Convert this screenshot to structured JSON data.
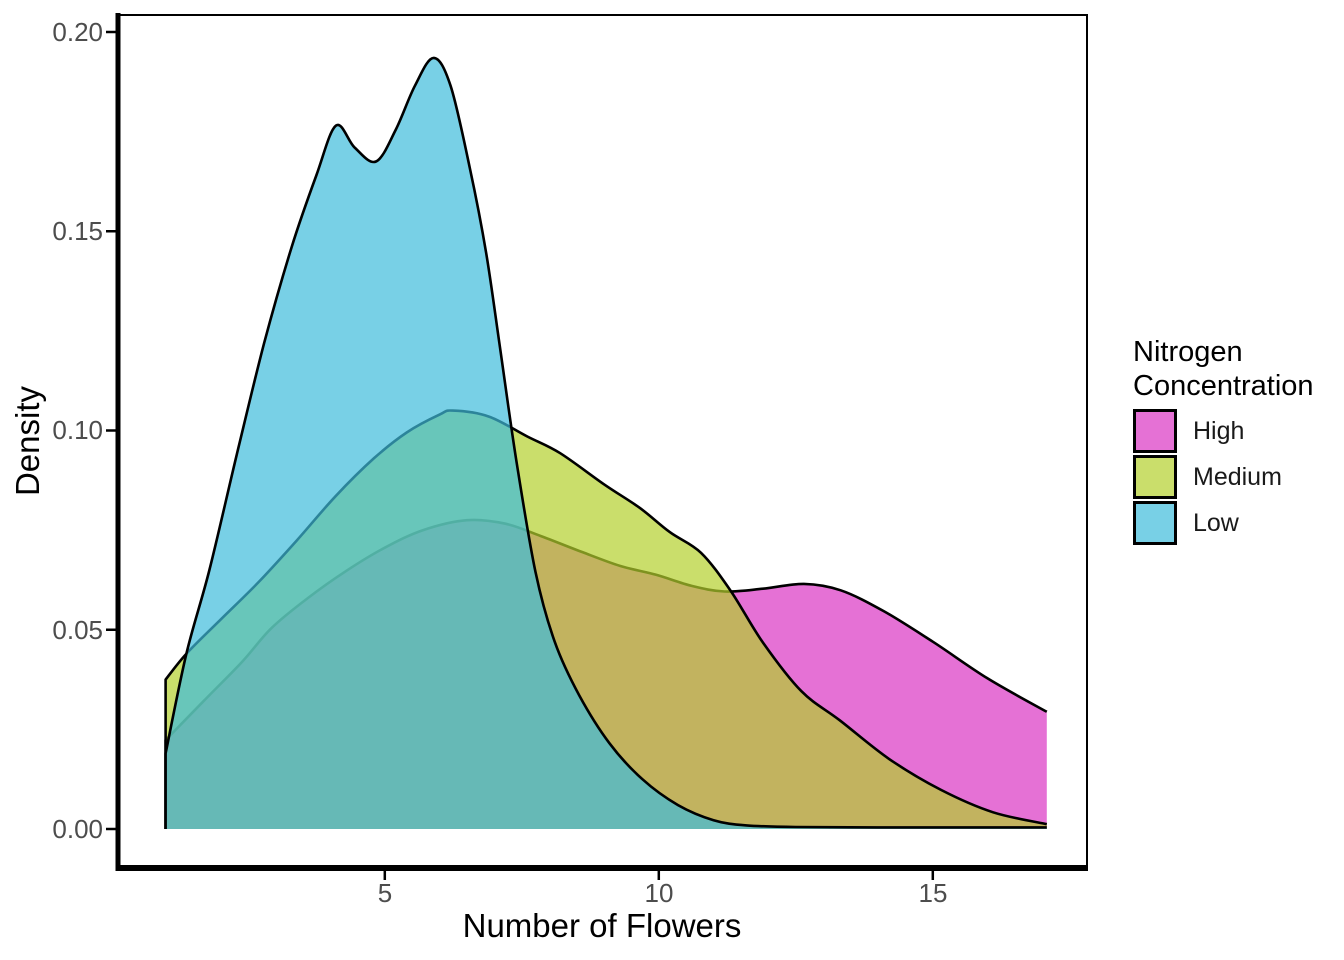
{
  "figure": {
    "background": "#ffffff",
    "panel_border_color": "#000000",
    "axis_line_color": "#000000",
    "tick_label_color": "#4d4d4d",
    "y_axis": {
      "title": "Density",
      "ticks": [
        {
          "label": "0.20",
          "value": 0.2
        },
        {
          "label": "0.15",
          "value": 0.15
        },
        {
          "label": "0.10",
          "value": 0.1
        },
        {
          "label": "0.05",
          "value": 0.05
        },
        {
          "label": "0.00",
          "value": 0.0
        }
      ]
    },
    "x_axis": {
      "title": "Number of Flowers",
      "ticks": [
        {
          "label": "5",
          "value": 5
        },
        {
          "label": "10",
          "value": 10
        },
        {
          "label": "15",
          "value": 15
        }
      ]
    },
    "legend": {
      "title_lines": [
        "Nitrogen",
        "Concentration"
      ],
      "entries": [
        {
          "label": "High",
          "color": "#DA35C3"
        },
        {
          "label": "Medium",
          "color": "#B3D02C"
        },
        {
          "label": "Low",
          "color": "#3FBCDC"
        }
      ]
    }
  },
  "chart_data": {
    "type": "area",
    "subtype": "overlapping-kernel-density",
    "title": "",
    "xlabel": "Number of Flowers",
    "ylabel": "Density",
    "xlim": [
      0.1,
      17.8
    ],
    "ylim": [
      0,
      0.2045
    ],
    "xticks": [
      5,
      10,
      15
    ],
    "yticks": [
      0.0,
      0.05,
      0.1,
      0.15,
      0.2
    ],
    "grid": false,
    "legend_position": "right",
    "legend_title": "Nitrogen Concentration",
    "fill_opacity": 0.7,
    "stroke_color": "#000000",
    "stroke_width": 2.6,
    "series": [
      {
        "name": "High",
        "fill": "#DA35C3",
        "points": [
          [
            1,
            0.0223
          ],
          [
            1.7,
            0.0322
          ],
          [
            2.4,
            0.042
          ],
          [
            2.93,
            0.0504
          ],
          [
            3.6,
            0.058
          ],
          [
            4.3,
            0.0648
          ],
          [
            5.0,
            0.0706
          ],
          [
            5.7,
            0.075
          ],
          [
            6.5,
            0.0775
          ],
          [
            7.2,
            0.0766
          ],
          [
            7.85,
            0.0735
          ],
          [
            8.6,
            0.0695
          ],
          [
            9.3,
            0.066
          ],
          [
            9.95,
            0.0638
          ],
          [
            10.6,
            0.061
          ],
          [
            11.2,
            0.0596
          ],
          [
            11.9,
            0.0603
          ],
          [
            12.65,
            0.0615
          ],
          [
            13.32,
            0.0599
          ],
          [
            14.1,
            0.0547
          ],
          [
            15.0,
            0.047
          ],
          [
            16.0,
            0.0378
          ],
          [
            17.08,
            0.0294
          ]
        ]
      },
      {
        "name": "Medium",
        "fill": "#B3D02C",
        "points": [
          [
            1,
            0.0375
          ],
          [
            1.38,
            0.044
          ],
          [
            2.0,
            0.0525
          ],
          [
            2.7,
            0.062
          ],
          [
            3.4,
            0.0725
          ],
          [
            4.1,
            0.0835
          ],
          [
            4.8,
            0.093
          ],
          [
            5.4,
            0.0995
          ],
          [
            6.0,
            0.104
          ],
          [
            6.24,
            0.105
          ],
          [
            6.9,
            0.1035
          ],
          [
            7.6,
            0.0985
          ],
          [
            8.2,
            0.0943
          ],
          [
            9.0,
            0.0865
          ],
          [
            9.66,
            0.0805
          ],
          [
            10.2,
            0.0745
          ],
          [
            10.77,
            0.0693
          ],
          [
            11.31,
            0.0598
          ],
          [
            11.9,
            0.0468
          ],
          [
            12.6,
            0.0346
          ],
          [
            13.3,
            0.0273
          ],
          [
            14.2,
            0.0176
          ],
          [
            15.15,
            0.0098
          ],
          [
            16.1,
            0.0042
          ],
          [
            17.08,
            0.0012
          ]
        ]
      },
      {
        "name": "Low",
        "fill": "#3FBCDC",
        "points": [
          [
            1,
            0.019
          ],
          [
            1.38,
            0.044
          ],
          [
            1.8,
            0.065
          ],
          [
            2.3,
            0.094
          ],
          [
            2.8,
            0.122
          ],
          [
            3.3,
            0.146
          ],
          [
            3.75,
            0.164
          ],
          [
            4.11,
            0.1765
          ],
          [
            4.45,
            0.171
          ],
          [
            4.84,
            0.1675
          ],
          [
            5.2,
            0.1755
          ],
          [
            5.55,
            0.1865
          ],
          [
            5.89,
            0.1935
          ],
          [
            6.2,
            0.1865
          ],
          [
            6.55,
            0.166
          ],
          [
            6.85,
            0.1445
          ],
          [
            7.1,
            0.121
          ],
          [
            7.4,
            0.0925
          ],
          [
            7.75,
            0.0645
          ],
          [
            8.1,
            0.047
          ],
          [
            8.55,
            0.0335
          ],
          [
            9.1,
            0.0215
          ],
          [
            9.7,
            0.0125
          ],
          [
            10.35,
            0.006
          ],
          [
            11.0,
            0.0022
          ],
          [
            11.6,
            0.0009
          ],
          [
            12.5,
            0.0005
          ],
          [
            14.0,
            0.0004
          ],
          [
            15.5,
            0.0004
          ],
          [
            17.08,
            0.0004
          ]
        ]
      }
    ]
  }
}
